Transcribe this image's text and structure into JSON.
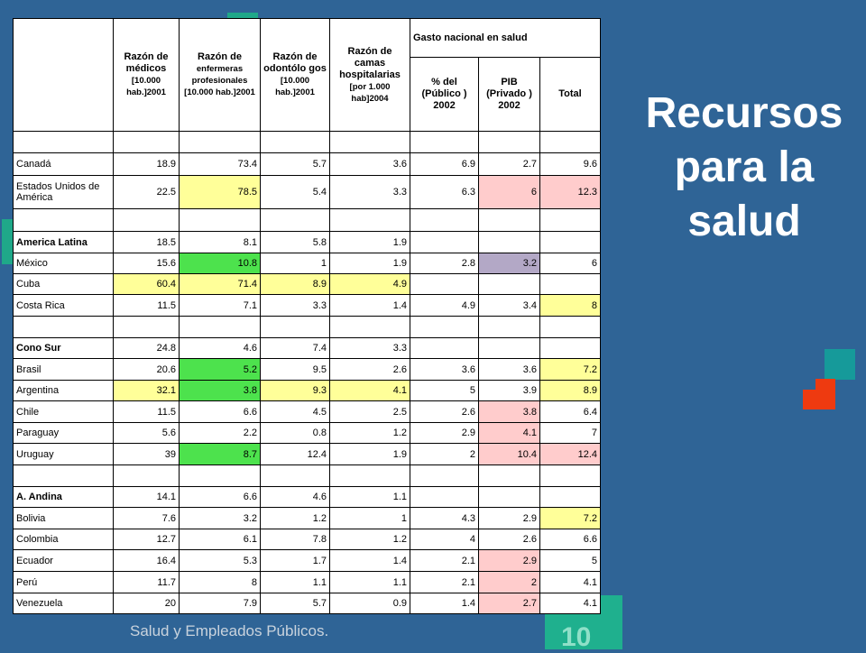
{
  "title": "Recursos para la salud",
  "footer": "Salud y Empleados Públicos.",
  "page_number": "10",
  "colors": {
    "background": "#2f6496",
    "yellow": "#ffff99",
    "green": "#4de24d",
    "pink": "#ffcccc",
    "mauve": "#b3a8c6"
  },
  "headers": {
    "medicos_a": "Razón de médicos",
    "medicos_b": "[10.000 hab.]2001",
    "enfermeras_a": "Razón de",
    "enfermeras_b": "enfermeras profesionales",
    "enfermeras_c": "[10.000 hab.]2001",
    "odonto_a": "Razón de odontólo gos",
    "odonto_b": "[10.000 hab.]2001",
    "camas_a": "Razón de camas hospitalarias",
    "camas_b": "[por 1.000 hab]2004",
    "gasto": "Gasto nacional en salud",
    "publico": "% del (Público ) 2002",
    "privado": "PIB (Privado ) 2002",
    "total": "Total"
  },
  "rows": [
    {
      "label": "",
      "values": [
        "",
        "",
        "",
        "",
        "",
        "",
        ""
      ],
      "hl": [
        "",
        "",
        "",
        "",
        "",
        "",
        ""
      ]
    },
    {
      "label": "Canadá",
      "values": [
        "18.9",
        "73.4",
        "5.7",
        "3.6",
        "6.9",
        "2.7",
        "9.6"
      ],
      "hl": [
        "",
        "",
        "",
        "",
        "",
        "",
        ""
      ]
    },
    {
      "label": "Estados Unidos de América",
      "values": [
        "22.5",
        "78.5",
        "5.4",
        "3.3",
        "6.3",
        "6",
        "12.3"
      ],
      "hl": [
        "",
        "yellow",
        "",
        "",
        "",
        "pink",
        "pink"
      ]
    },
    {
      "label": "",
      "values": [
        "",
        "",
        "",
        "",
        "",
        "",
        ""
      ],
      "hl": [
        "",
        "",
        "",
        "",
        "",
        "",
        ""
      ]
    },
    {
      "label": "America Latina",
      "values": [
        "18.5",
        "8.1",
        "5.8",
        "1.9",
        "",
        "",
        ""
      ],
      "hl": [
        "",
        "",
        "",
        "",
        "",
        "",
        ""
      ],
      "bold": true
    },
    {
      "label": "México",
      "values": [
        "15.6",
        "10.8",
        "1",
        "1.9",
        "2.8",
        "3.2",
        "6"
      ],
      "hl": [
        "",
        "green",
        "",
        "",
        "",
        "mauve",
        ""
      ]
    },
    {
      "label": "Cuba",
      "values": [
        "60.4",
        "71.4",
        "8.9",
        "4.9",
        "",
        "",
        ""
      ],
      "hl": [
        "yellow",
        "yellow",
        "yellow",
        "yellow",
        "",
        "",
        ""
      ]
    },
    {
      "label": "Costa Rica",
      "values": [
        "11.5",
        "7.1",
        "3.3",
        "1.4",
        "4.9",
        "3.4",
        "8"
      ],
      "hl": [
        "",
        "",
        "",
        "",
        "",
        "",
        "yellow"
      ]
    },
    {
      "label": "",
      "values": [
        "",
        "",
        "",
        "",
        "",
        "",
        ""
      ],
      "hl": [
        "",
        "",
        "",
        "",
        "",
        "",
        ""
      ]
    },
    {
      "label": "Cono Sur",
      "values": [
        "24.8",
        "4.6",
        "7.4",
        "3.3",
        "",
        "",
        ""
      ],
      "hl": [
        "",
        "",
        "",
        "",
        "",
        "",
        ""
      ],
      "bold": true
    },
    {
      "label": "Brasil",
      "values": [
        "20.6",
        "5.2",
        "9.5",
        "2.6",
        "3.6",
        "3.6",
        "7.2"
      ],
      "hl": [
        "",
        "green",
        "",
        "",
        "",
        "",
        "yellow"
      ]
    },
    {
      "label": "Argentina",
      "values": [
        "32.1",
        "3.8",
        "9.3",
        "4.1",
        "5",
        "3.9",
        "8.9"
      ],
      "hl": [
        "yellow",
        "green",
        "yellow",
        "yellow",
        "",
        "",
        "yellow"
      ]
    },
    {
      "label": "Chile",
      "values": [
        "11.5",
        "6.6",
        "4.5",
        "2.5",
        "2.6",
        "3.8",
        "6.4"
      ],
      "hl": [
        "",
        "",
        "",
        "",
        "",
        "pink",
        ""
      ]
    },
    {
      "label": "Paraguay",
      "values": [
        "5.6",
        "2.2",
        "0.8",
        "1.2",
        "2.9",
        "4.1",
        "7"
      ],
      "hl": [
        "",
        "",
        "",
        "",
        "",
        "pink",
        ""
      ]
    },
    {
      "label": "Uruguay",
      "values": [
        "39",
        "8.7",
        "12.4",
        "1.9",
        "2",
        "10.4",
        "12.4"
      ],
      "hl": [
        "",
        "green",
        "",
        "",
        "",
        "pink",
        "pink"
      ]
    },
    {
      "label": "",
      "values": [
        "",
        "",
        "",
        "",
        "",
        "",
        ""
      ],
      "hl": [
        "",
        "",
        "",
        "",
        "",
        "",
        ""
      ]
    },
    {
      "label": "A. Andina",
      "values": [
        "14.1",
        "6.6",
        "4.6",
        "1.1",
        "",
        "",
        ""
      ],
      "hl": [
        "",
        "",
        "",
        "",
        "",
        "",
        ""
      ],
      "bold": true
    },
    {
      "label": "Bolivia",
      "values": [
        "7.6",
        "3.2",
        "1.2",
        "1",
        "4.3",
        "2.9",
        "7.2"
      ],
      "hl": [
        "",
        "",
        "",
        "",
        "",
        "",
        "yellow"
      ]
    },
    {
      "label": "Colombia",
      "values": [
        "12.7",
        "6.1",
        "7.8",
        "1.2",
        "4",
        "2.6",
        "6.6"
      ],
      "hl": [
        "",
        "",
        "",
        "",
        "",
        "",
        ""
      ]
    },
    {
      "label": "Ecuador",
      "values": [
        "16.4",
        "5.3",
        "1.7",
        "1.4",
        "2.1",
        "2.9",
        "5"
      ],
      "hl": [
        "",
        "",
        "",
        "",
        "",
        "pink",
        ""
      ]
    },
    {
      "label": "Perú",
      "values": [
        "11.7",
        "8",
        "1.1",
        "1.1",
        "2.1",
        "2",
        "4.1"
      ],
      "hl": [
        "",
        "",
        "",
        "",
        "",
        "pink",
        ""
      ]
    },
    {
      "label": "Venezuela",
      "values": [
        "20",
        "7.9",
        "5.7",
        "0.9",
        "1.4",
        "2.7",
        "4.1"
      ],
      "hl": [
        "",
        "",
        "",
        "",
        "",
        "pink",
        ""
      ]
    }
  ]
}
